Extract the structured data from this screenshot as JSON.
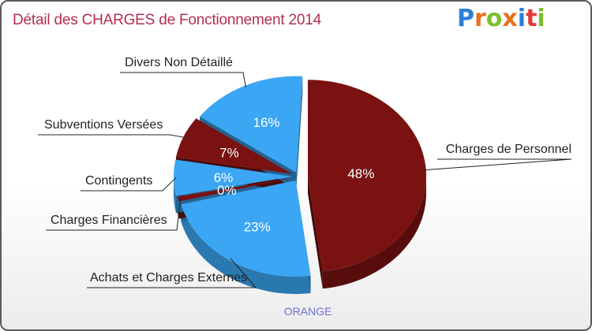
{
  "chart_data": {
    "type": "pie",
    "title": "Détail des CHARGES de Fonctionnement 2014",
    "subtitle": "ORANGE",
    "categories": [
      "Charges de Personnel",
      "Achats et Charges Externes",
      "Charges Financières",
      "Contingents",
      "Subventions Versées",
      "Divers Non Détaillé"
    ],
    "values": [
      48,
      23,
      0,
      6,
      7,
      16
    ],
    "value_labels": [
      "48%",
      "23%",
      "0%",
      "6%",
      "7%",
      "16%"
    ],
    "colors": [
      "#7a1212",
      "#3aa6f4",
      "#7a1212",
      "#3aa6f4",
      "#7a1212",
      "#3aa6f4"
    ],
    "style": "3d-exploded"
  },
  "brand": {
    "letters": [
      "P",
      "r",
      "o",
      "x",
      "i",
      "t",
      "i"
    ],
    "colors": [
      "#2c7fd6",
      "#e8701e",
      "#7cbf2b",
      "#e8701e",
      "#2c7fd6",
      "#e23a3a",
      "#7cbf2b"
    ]
  }
}
